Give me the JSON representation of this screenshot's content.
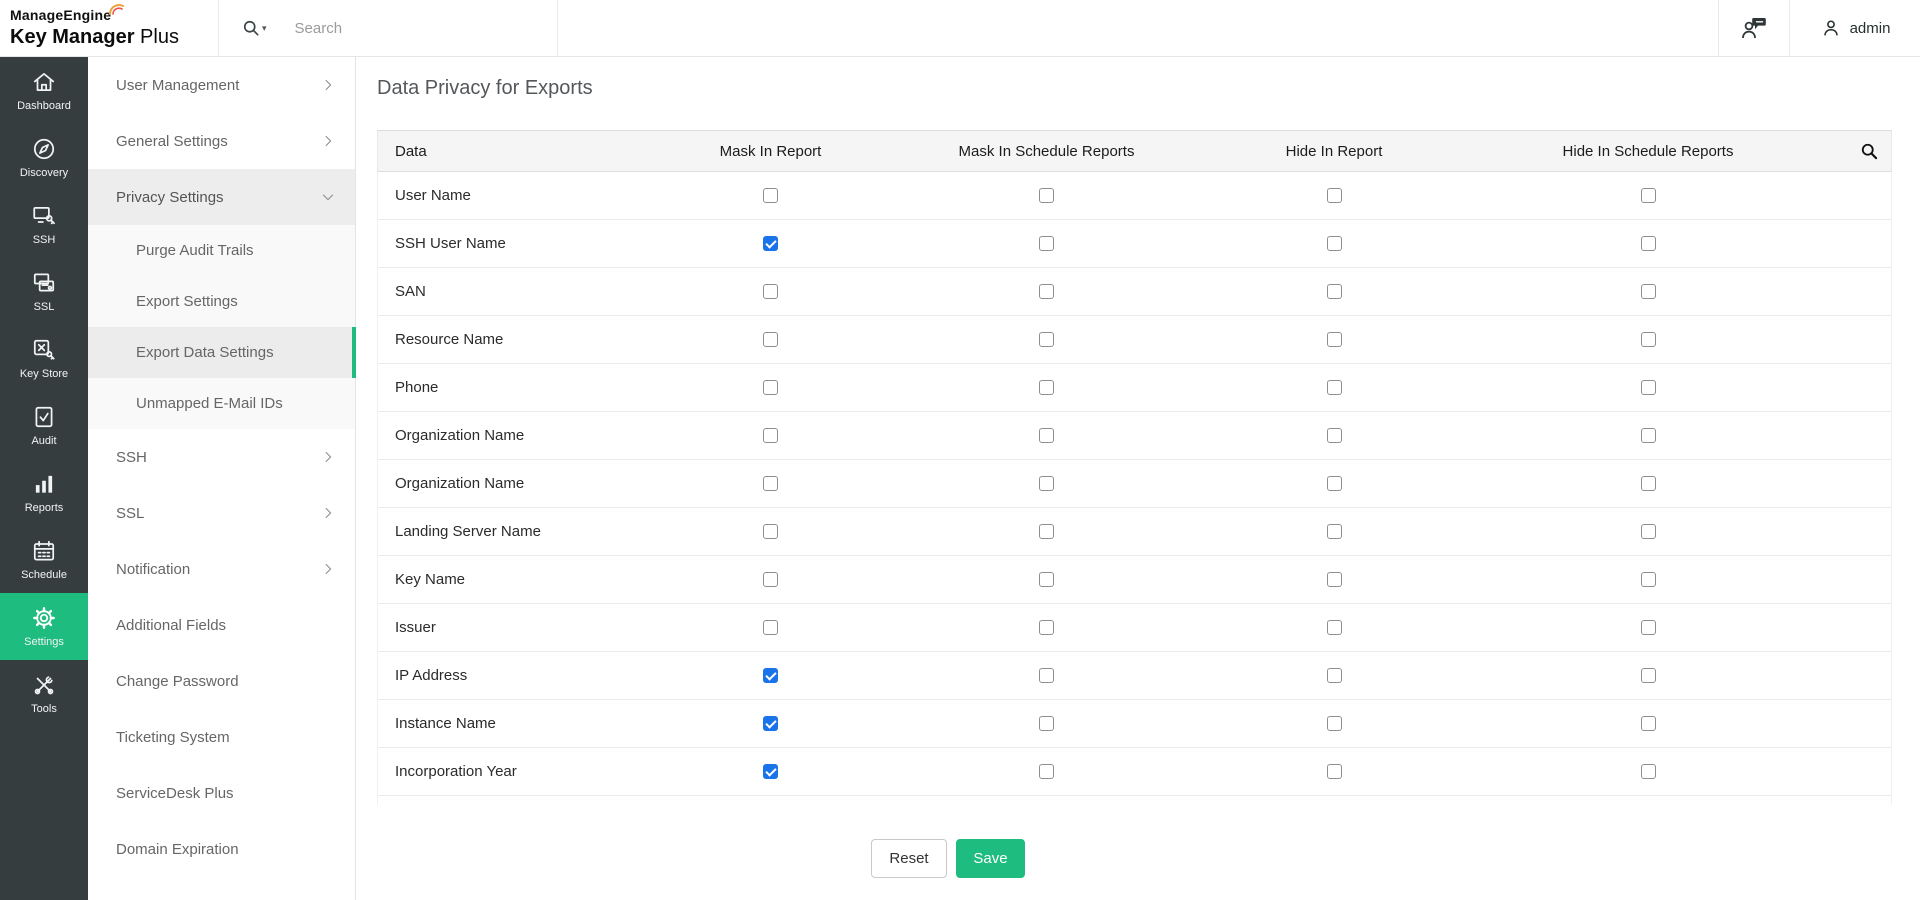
{
  "topbar": {
    "brand_line1": "ManageEngine",
    "brand_line2_bold": "Key Manager",
    "brand_line2_regular": " Plus",
    "search_placeholder": "Search",
    "admin_label": "admin"
  },
  "primary_sidebar": {
    "items": [
      {
        "label": "Dashboard",
        "icon": "home-icon",
        "active": false
      },
      {
        "label": "Discovery",
        "icon": "compass-icon",
        "active": false
      },
      {
        "label": "SSH",
        "icon": "ssh-monitor-key-icon",
        "active": false
      },
      {
        "label": "SSL",
        "icon": "ssl-certificate-icon",
        "active": false
      },
      {
        "label": "Key Store",
        "icon": "key-store-icon",
        "active": false
      },
      {
        "label": "Audit",
        "icon": "audit-clipboard-icon",
        "active": false
      },
      {
        "label": "Reports",
        "icon": "bar-chart-icon",
        "active": false
      },
      {
        "label": "Schedule",
        "icon": "calendar-icon",
        "active": false
      },
      {
        "label": "Settings",
        "icon": "gear-icon",
        "active": true
      },
      {
        "label": "Tools",
        "icon": "tools-icon",
        "active": false
      }
    ]
  },
  "secondary_sidebar": {
    "items": [
      {
        "label": "User Management",
        "chevron": "right",
        "child": false,
        "selected": false,
        "open": false
      },
      {
        "label": "General Settings",
        "chevron": "right",
        "child": false,
        "selected": false,
        "open": false
      },
      {
        "label": "Privacy Settings",
        "chevron": "down",
        "child": false,
        "selected": false,
        "open": true
      },
      {
        "label": "Purge Audit Trails",
        "chevron": "none",
        "child": true,
        "selected": false,
        "open": false
      },
      {
        "label": "Export Settings",
        "chevron": "none",
        "child": true,
        "selected": false,
        "open": false
      },
      {
        "label": "Export Data Settings",
        "chevron": "none",
        "child": true,
        "selected": true,
        "open": false
      },
      {
        "label": "Unmapped E-Mail IDs",
        "chevron": "none",
        "child": true,
        "selected": false,
        "open": false
      },
      {
        "label": "SSH",
        "chevron": "right",
        "child": false,
        "selected": false,
        "open": false
      },
      {
        "label": "SSL",
        "chevron": "right",
        "child": false,
        "selected": false,
        "open": false
      },
      {
        "label": "Notification",
        "chevron": "right",
        "child": false,
        "selected": false,
        "open": false
      },
      {
        "label": "Additional Fields",
        "chevron": "none",
        "child": false,
        "selected": false,
        "open": false
      },
      {
        "label": "Change Password",
        "chevron": "none",
        "child": false,
        "selected": false,
        "open": false
      },
      {
        "label": "Ticketing System",
        "chevron": "none",
        "child": false,
        "selected": false,
        "open": false
      },
      {
        "label": "ServiceDesk Plus",
        "chevron": "none",
        "child": false,
        "selected": false,
        "open": false
      },
      {
        "label": "Domain Expiration",
        "chevron": "none",
        "child": false,
        "selected": false,
        "open": false
      }
    ]
  },
  "main": {
    "title": "Data Privacy for Exports",
    "table": {
      "columns": [
        "Data",
        "Mask In Report",
        "Mask In Schedule Reports",
        "Hide In Report",
        "Hide In Schedule Reports"
      ],
      "checkbox_column_keys": [
        "mask-in-report",
        "mask-in-schedule-reports",
        "hide-in-report",
        "hide-in-schedule-reports"
      ],
      "rows": [
        {
          "label": "User Name",
          "checks": [
            false,
            false,
            false,
            false
          ]
        },
        {
          "label": "SSH User Name",
          "checks": [
            true,
            false,
            false,
            false
          ]
        },
        {
          "label": "SAN",
          "checks": [
            false,
            false,
            false,
            false
          ]
        },
        {
          "label": "Resource Name",
          "checks": [
            false,
            false,
            false,
            false
          ]
        },
        {
          "label": "Phone",
          "checks": [
            false,
            false,
            false,
            false
          ]
        },
        {
          "label": "Organization Name",
          "checks": [
            false,
            false,
            false,
            false
          ]
        },
        {
          "label": "Organization Name",
          "checks": [
            false,
            false,
            false,
            false
          ]
        },
        {
          "label": "Landing Server Name",
          "checks": [
            false,
            false,
            false,
            false
          ]
        },
        {
          "label": "Key Name",
          "checks": [
            false,
            false,
            false,
            false
          ]
        },
        {
          "label": "Issuer",
          "checks": [
            false,
            false,
            false,
            false
          ]
        },
        {
          "label": "IP Address",
          "checks": [
            true,
            false,
            false,
            false
          ]
        },
        {
          "label": "Instance Name",
          "checks": [
            true,
            false,
            false,
            false
          ]
        },
        {
          "label": "Incorporation Year",
          "checks": [
            true,
            false,
            false,
            false
          ]
        },
        {
          "label": "",
          "checks": [
            false,
            false,
            false,
            false
          ]
        }
      ]
    },
    "buttons": {
      "reset_label": "Reset",
      "save_label": "Save"
    }
  },
  "colors": {
    "accent_green": "#1ebc7e",
    "sidebar_dark": "#363d3f",
    "checkbox_checked_blue": "#1a73e8",
    "header_bg": "#f5f5f5",
    "brand_swoosh_orange": "#f0a23c"
  }
}
